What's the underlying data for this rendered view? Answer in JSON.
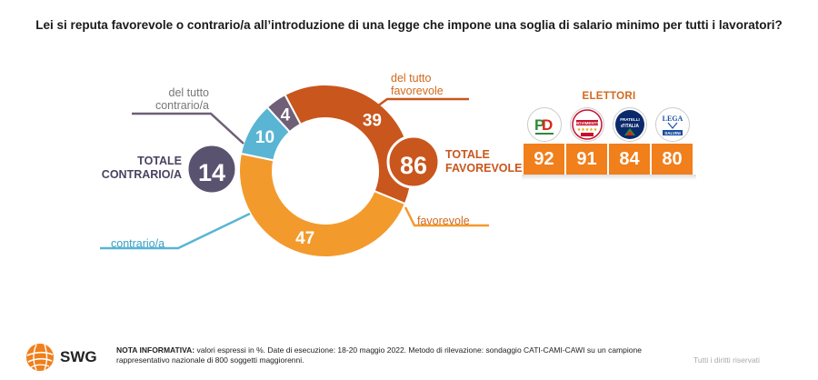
{
  "title": "Lei si reputa favorevole o contrario/a all’introduzione di una legge che impone una soglia di salario minimo per tutti  i lavoratori?",
  "chart_data": {
    "type": "pie",
    "categories": [
      "del tutto favorevole",
      "favorevole",
      "contrario/a",
      "del tutto contrario/a"
    ],
    "values": [
      39,
      47,
      10,
      4
    ],
    "colors": [
      "#c9561c",
      "#f39a2c",
      "#59b5d3",
      "#6f5f77"
    ],
    "totals": [
      {
        "label": "TOTALE FAVOREVOLE",
        "value": 86,
        "color": "#c9561c"
      },
      {
        "label": "TOTALE CONTRARIO/A",
        "value": 14,
        "color": "#5a5370"
      }
    ]
  },
  "labels": {
    "del_tutto_favorevole_1": "del tutto",
    "del_tutto_favorevole_2": "favorevole",
    "favorevole": "favorevole",
    "contrario": "contrario/a",
    "del_tutto_contrario_1": "del tutto",
    "del_tutto_contrario_2": "contrario/a",
    "totale_fav_1": "TOTALE",
    "totale_fav_2": "FAVOREVOLE",
    "totale_con_1": "TOTALE",
    "totale_con_2": "CONTRARIO/A"
  },
  "elettori": {
    "title": "ELETTORI",
    "values": [
      92,
      91,
      84,
      80
    ],
    "logo_icons": [
      "pd-logo-icon",
      "m5s-logo-icon",
      "fdi-logo-icon",
      "lega-logo-icon"
    ]
  },
  "footer": {
    "brand": "SWG",
    "note_bold": "NOTA INFORMATIVA:",
    "note_text": " valori espressi in %. Date di esecuzione: 18-20 maggio 2022. Metodo di rilevazione: sondaggio CATI-CAMI-CAWI su un campione rappresentativo nazionale di 800 soggetti maggiorenni.",
    "rights": "Tutti i diritti riservati"
  }
}
